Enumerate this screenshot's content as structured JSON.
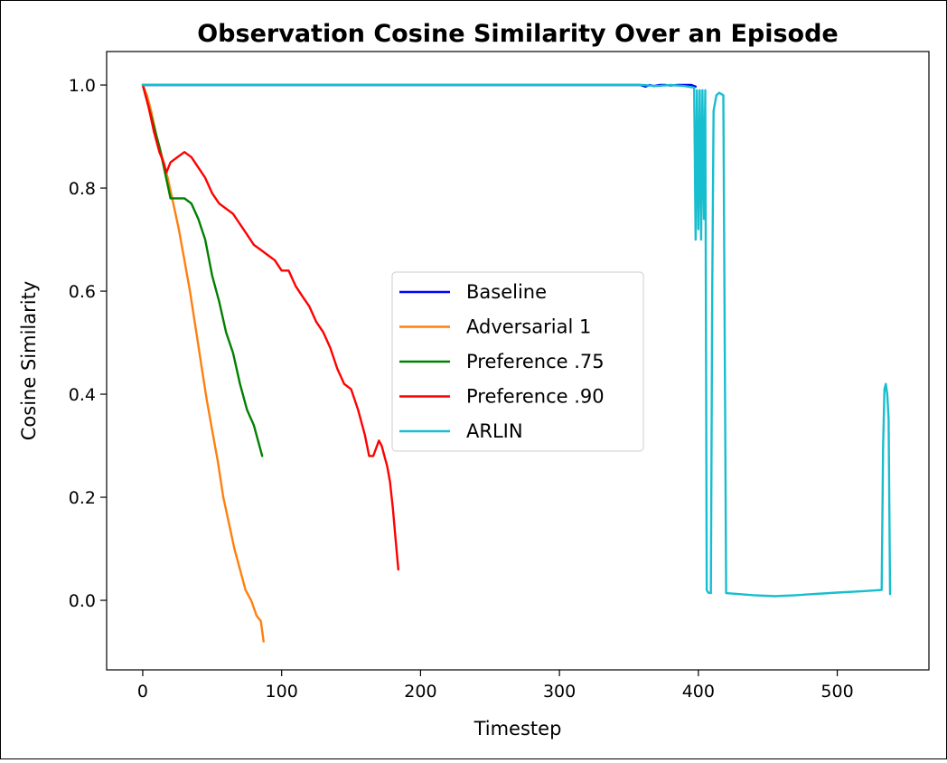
{
  "chart_data": {
    "type": "line",
    "title": "Observation Cosine Similarity Over an Episode",
    "xlabel": "Timestep",
    "ylabel": "Cosine Similarity",
    "xlim": [
      -26,
      566
    ],
    "ylim": [
      -0.135,
      1.065
    ],
    "xticks": [
      0,
      100,
      200,
      300,
      400,
      500
    ],
    "yticks": [
      0.0,
      0.2,
      0.4,
      0.6,
      0.8,
      1.0
    ],
    "xtick_labels": [
      "0",
      "100",
      "200",
      "300",
      "400",
      "500"
    ],
    "ytick_labels": [
      "0.0",
      "0.2",
      "0.4",
      "0.6",
      "0.8",
      "1.0"
    ],
    "grid": false,
    "legend_position": "center",
    "series": [
      {
        "name": "Baseline",
        "color": "#0000ff",
        "x": [
          0,
          100,
          200,
          300,
          358,
          362,
          365,
          368,
          372,
          376,
          380,
          385,
          390,
          395,
          398
        ],
        "y": [
          1.0,
          1.0,
          1.0,
          1.0,
          1.0,
          0.997,
          1.0,
          0.998,
          1.0,
          1.0,
          0.999,
          1.0,
          1.0,
          1.0,
          0.997
        ]
      },
      {
        "name": "Adversarial 1",
        "color": "#ff7f0e",
        "x": [
          0,
          3,
          6,
          10,
          14,
          18,
          22,
          26,
          30,
          34,
          38,
          42,
          46,
          50,
          54,
          58,
          62,
          66,
          70,
          74,
          78,
          82,
          85,
          86,
          87
        ],
        "y": [
          1.0,
          0.98,
          0.95,
          0.9,
          0.86,
          0.82,
          0.77,
          0.72,
          0.66,
          0.6,
          0.53,
          0.46,
          0.39,
          0.33,
          0.27,
          0.2,
          0.15,
          0.1,
          0.06,
          0.02,
          0.0,
          -0.03,
          -0.04,
          -0.06,
          -0.08
        ]
      },
      {
        "name": "Preference .75",
        "color": "#008000",
        "x": [
          0,
          4,
          8,
          12,
          16,
          20,
          25,
          30,
          35,
          40,
          45,
          50,
          55,
          60,
          65,
          70,
          75,
          80,
          84,
          86
        ],
        "y": [
          1.0,
          0.96,
          0.92,
          0.88,
          0.83,
          0.78,
          0.78,
          0.78,
          0.77,
          0.74,
          0.7,
          0.63,
          0.58,
          0.52,
          0.48,
          0.42,
          0.37,
          0.34,
          0.3,
          0.28
        ]
      },
      {
        "name": "Preference .90",
        "color": "#ff0000",
        "x": [
          0,
          4,
          8,
          12,
          15,
          17,
          20,
          25,
          30,
          35,
          40,
          45,
          50,
          55,
          60,
          65,
          70,
          75,
          80,
          85,
          90,
          95,
          100,
          105,
          110,
          115,
          120,
          125,
          130,
          135,
          140,
          145,
          150,
          155,
          160,
          163,
          166,
          170,
          172,
          174,
          176,
          178,
          180,
          182,
          184
        ],
        "y": [
          1.0,
          0.96,
          0.91,
          0.87,
          0.85,
          0.83,
          0.85,
          0.86,
          0.87,
          0.86,
          0.84,
          0.82,
          0.79,
          0.77,
          0.76,
          0.75,
          0.73,
          0.71,
          0.69,
          0.68,
          0.67,
          0.66,
          0.64,
          0.64,
          0.61,
          0.59,
          0.57,
          0.54,
          0.52,
          0.49,
          0.45,
          0.42,
          0.41,
          0.37,
          0.32,
          0.28,
          0.28,
          0.31,
          0.3,
          0.28,
          0.26,
          0.23,
          0.18,
          0.12,
          0.06
        ]
      },
      {
        "name": "ARLIN",
        "color": "#17becf",
        "x": [
          0,
          100,
          200,
          300,
          360,
          370,
          380,
          390,
          397,
          398,
          399,
          400,
          401,
          402,
          403,
          404,
          405,
          406,
          407,
          409,
          410,
          411,
          413,
          415,
          418,
          420,
          440,
          455,
          470,
          500,
          520,
          532,
          533,
          534,
          535,
          536,
          537,
          538
        ],
        "y": [
          1.0,
          1.0,
          1.0,
          1.0,
          1.0,
          0.998,
          1.0,
          0.998,
          0.995,
          0.7,
          0.99,
          0.72,
          0.99,
          0.7,
          0.99,
          0.74,
          0.99,
          0.02,
          0.015,
          0.014,
          0.6,
          0.95,
          0.98,
          0.985,
          0.98,
          0.014,
          0.01,
          0.008,
          0.01,
          0.015,
          0.018,
          0.02,
          0.3,
          0.41,
          0.42,
          0.4,
          0.35,
          0.012
        ]
      }
    ]
  }
}
